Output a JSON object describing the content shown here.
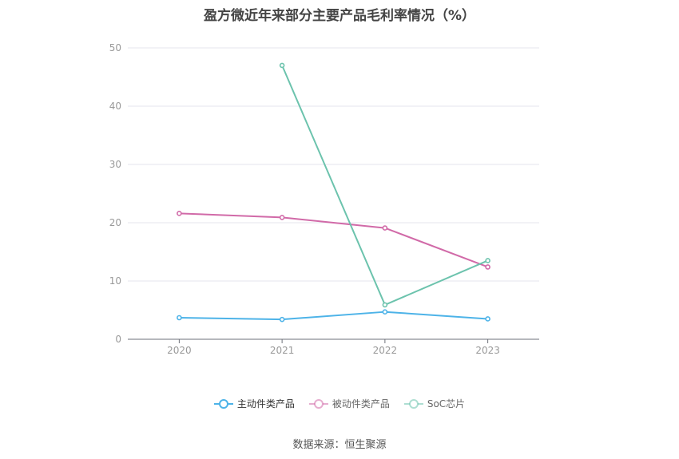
{
  "chart_data": {
    "type": "line",
    "title": "盈方微近年来部分主要产品毛利率情况（%）",
    "categories": [
      "2020",
      "2021",
      "2022",
      "2023"
    ],
    "ylim": [
      0,
      50
    ],
    "yticks": [
      "0",
      "10",
      "20",
      "30",
      "40",
      "50"
    ],
    "grid": true,
    "legend_position": "bottom",
    "series": [
      {
        "name": "主动件类产品",
        "color": "#4db3e8",
        "values": [
          3.7,
          3.4,
          4.7,
          3.5
        ]
      },
      {
        "name": "被动件类产品",
        "color": "#d16aa8",
        "values": [
          21.6,
          20.9,
          19.1,
          12.4
        ]
      },
      {
        "name": "SoC芯片",
        "color": "#6cc3ad",
        "values": [
          null,
          47.0,
          5.9,
          13.5
        ]
      }
    ]
  },
  "source": "数据来源：恒生聚源"
}
